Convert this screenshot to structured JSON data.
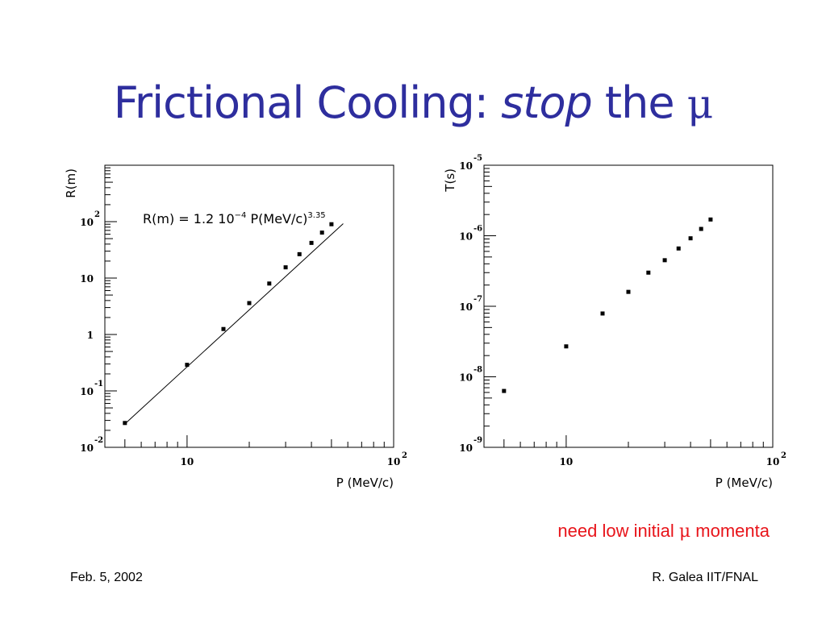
{
  "title": {
    "prefix": "Frictional Cooling: ",
    "emphasis": "stop",
    "middle": " the ",
    "symbol": "μ"
  },
  "note": {
    "prefix": "need low initial ",
    "symbol": "μ",
    "suffix": " momenta"
  },
  "footer": {
    "date": "Feb. 5, 2002",
    "author": "R. Galea IIT/FNAL"
  },
  "colors": {
    "title": "#2e2e9e",
    "note": "#e8141a",
    "axes": "#000000"
  },
  "chart_data": [
    {
      "type": "scatter",
      "scale": "log-log",
      "xlabel": "P (MeV/c)",
      "ylabel": "R(m)",
      "xlim": [
        4,
        100
      ],
      "ylim": [
        0.01,
        1000
      ],
      "x_ticks": [
        {
          "v": 10,
          "base": "10",
          "exp": ""
        },
        {
          "v": 100,
          "base": "10",
          "exp": "2"
        }
      ],
      "y_ticks": [
        {
          "v": 0.01,
          "base": "10",
          "exp": "-2"
        },
        {
          "v": 0.1,
          "base": "10",
          "exp": "-1"
        },
        {
          "v": 1,
          "base": "1",
          "exp": ""
        },
        {
          "v": 10,
          "base": "10",
          "exp": ""
        },
        {
          "v": 100,
          "base": "10",
          "exp": "2"
        }
      ],
      "annotation": {
        "text": "R(m) = 1.2 10",
        "exp1": "−4",
        "mid": " P(MeV/c)",
        "exp2": "3.35"
      },
      "fit": {
        "x": [
          5,
          57
        ],
        "y": [
          0.026,
          92
        ]
      },
      "series": [
        {
          "x": [
            5,
            10,
            15,
            20,
            25,
            30,
            35,
            40,
            45,
            50
          ],
          "y": [
            0.027,
            0.29,
            1.25,
            3.6,
            8.0,
            15.5,
            26.5,
            42,
            64,
            90
          ]
        }
      ]
    },
    {
      "type": "scatter",
      "scale": "log-log",
      "xlabel": "P (MeV/c)",
      "ylabel": "T(s)",
      "xlim": [
        4,
        100
      ],
      "ylim": [
        1e-09,
        1e-05
      ],
      "x_ticks": [
        {
          "v": 10,
          "base": "10",
          "exp": ""
        },
        {
          "v": 100,
          "base": "10",
          "exp": "2"
        }
      ],
      "y_ticks": [
        {
          "v": 1e-09,
          "base": "10",
          "exp": "-9"
        },
        {
          "v": 1e-08,
          "base": "10",
          "exp": "-8"
        },
        {
          "v": 1e-07,
          "base": "10",
          "exp": "-7"
        },
        {
          "v": 1e-06,
          "base": "10",
          "exp": "-6"
        },
        {
          "v": 1e-05,
          "base": "10",
          "exp": "-5"
        }
      ],
      "series": [
        {
          "x": [
            5,
            10,
            15,
            20,
            25,
            30,
            35,
            40,
            45,
            50
          ],
          "y": [
            6.3e-09,
            2.7e-08,
            7.9e-08,
            1.6e-07,
            3e-07,
            4.5e-07,
            6.6e-07,
            9.2e-07,
            1.25e-06,
            1.7e-06
          ]
        }
      ]
    }
  ]
}
